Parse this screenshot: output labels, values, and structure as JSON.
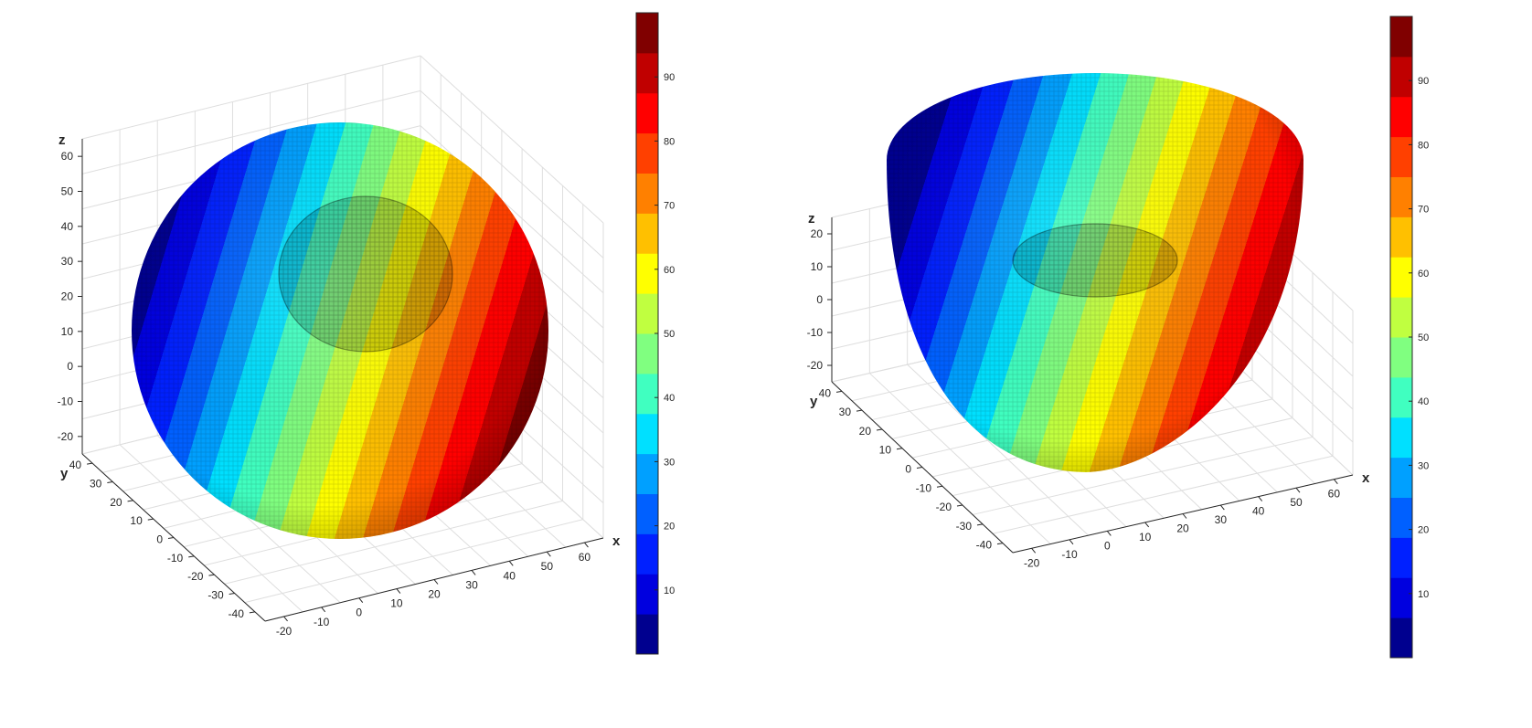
{
  "chart_data": [
    {
      "type": "scatter",
      "subtype": "3d-voxel-surface",
      "shape": "sphere with a cylindrical cavity",
      "title": "",
      "xlabel": "x",
      "ylabel": "y",
      "zlabel": "z",
      "xticks": [
        "-20",
        "-10",
        "0",
        "10",
        "20",
        "30",
        "40",
        "50",
        "60"
      ],
      "yticks": [
        "40",
        "30",
        "20",
        "10",
        "0",
        "-10",
        "-20",
        "-30",
        "-40"
      ],
      "zticks": [
        "60",
        "50",
        "40",
        "30",
        "20",
        "10",
        "0",
        "-10",
        "-20"
      ],
      "xlim": [
        -25,
        65
      ],
      "ylim": [
        -45,
        45
      ],
      "zlim": [
        -25,
        65
      ],
      "grid": true,
      "colormap": "jet",
      "color_by": "x",
      "colorbar": {
        "position": "right",
        "ticks": [
          "10",
          "20",
          "30",
          "40",
          "50",
          "60",
          "70",
          "80",
          "90"
        ],
        "range": [
          0,
          100
        ],
        "levels": 16,
        "colors": [
          "#00008f",
          "#0000df",
          "#0020ff",
          "#0060ff",
          "#00a0ff",
          "#00e0ff",
          "#40ffc0",
          "#80ff80",
          "#c0ff40",
          "#ffff00",
          "#ffc000",
          "#ff8000",
          "#ff4000",
          "#ff0000",
          "#c00000",
          "#800000"
        ]
      }
    },
    {
      "type": "scatter",
      "subtype": "3d-voxel-surface",
      "shape": "lower hemisphere with a cylindrical cavity",
      "title": "",
      "xlabel": "x",
      "ylabel": "y",
      "zlabel": "z",
      "xticks": [
        "-20",
        "-10",
        "0",
        "10",
        "20",
        "30",
        "40",
        "50",
        "60"
      ],
      "yticks": [
        "40",
        "30",
        "20",
        "10",
        "0",
        "-10",
        "-20",
        "-30",
        "-40"
      ],
      "zticks": [
        "20",
        "10",
        "0",
        "-10",
        "-20"
      ],
      "xlim": [
        -25,
        65
      ],
      "ylim": [
        -45,
        45
      ],
      "zlim": [
        -25,
        25
      ],
      "grid": true,
      "colormap": "jet",
      "color_by": "x",
      "colorbar": {
        "position": "right",
        "ticks": [
          "10",
          "20",
          "30",
          "40",
          "50",
          "60",
          "70",
          "80",
          "90"
        ],
        "range": [
          0,
          100
        ],
        "levels": 16,
        "colors": [
          "#00008f",
          "#0000df",
          "#0020ff",
          "#0060ff",
          "#00a0ff",
          "#00e0ff",
          "#40ffc0",
          "#80ff80",
          "#c0ff40",
          "#ffff00",
          "#ffc000",
          "#ff8000",
          "#ff4000",
          "#ff0000",
          "#c00000",
          "#800000"
        ]
      }
    }
  ]
}
